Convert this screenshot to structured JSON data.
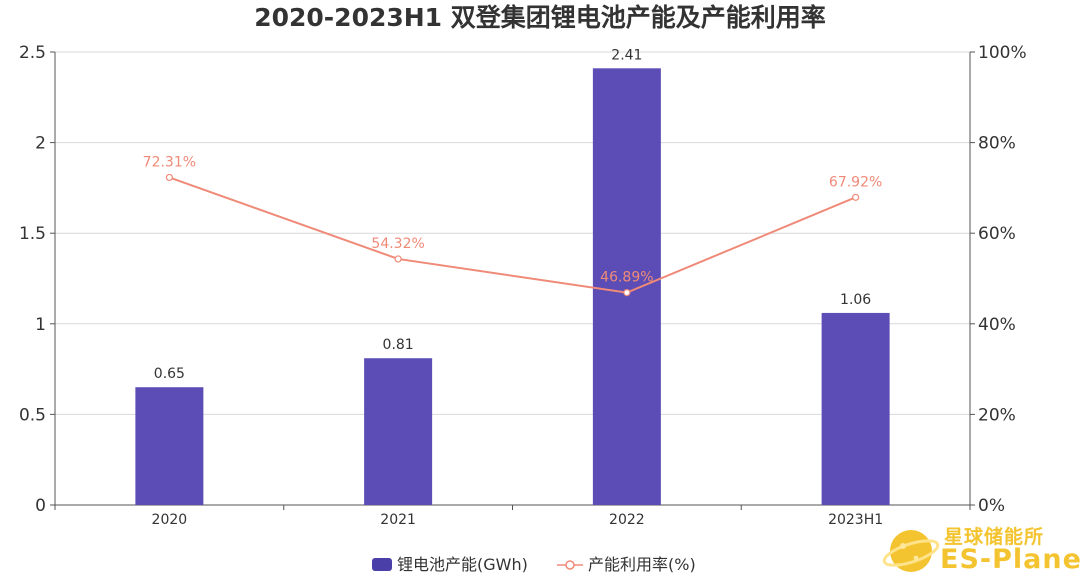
{
  "chart_data": {
    "type": "bar+line",
    "title": "2020-2023H1 双登集团锂电池产能及产能利用率",
    "categories": [
      "2020",
      "2021",
      "2022",
      "2023H1"
    ],
    "series": [
      {
        "name": "锂电池产能(GWh)",
        "kind": "bar",
        "axis": "left",
        "values": [
          0.65,
          0.81,
          2.41,
          1.06
        ],
        "labels": [
          "0.65",
          "0.81",
          "2.41",
          "1.06"
        ],
        "color": "#5b4db5"
      },
      {
        "name": "产能利用率(%)",
        "kind": "line",
        "axis": "right",
        "values": [
          72.31,
          54.32,
          46.89,
          67.92
        ],
        "labels": [
          "72.31%",
          "54.32%",
          "46.89%",
          "67.92%"
        ],
        "color": "#f08a78"
      }
    ],
    "y_left": {
      "range": [
        0,
        2.5
      ],
      "ticks": [
        0,
        0.5,
        1,
        1.5,
        2,
        2.5
      ],
      "tick_labels": [
        "0",
        "0.5",
        "1",
        "1.5",
        "2",
        "2.5"
      ]
    },
    "y_right": {
      "range": [
        0,
        100
      ],
      "ticks": [
        0,
        20,
        40,
        60,
        80,
        100
      ],
      "tick_labels": [
        "0%",
        "20%",
        "40%",
        "60%",
        "80%",
        "100%"
      ]
    },
    "grid": true,
    "legend_position": "bottom-center"
  },
  "watermark": {
    "logo": "planet-logo-icon",
    "text_cn": "星球储能所",
    "text_en": "ES-Planet",
    "color": "#f4c430"
  }
}
